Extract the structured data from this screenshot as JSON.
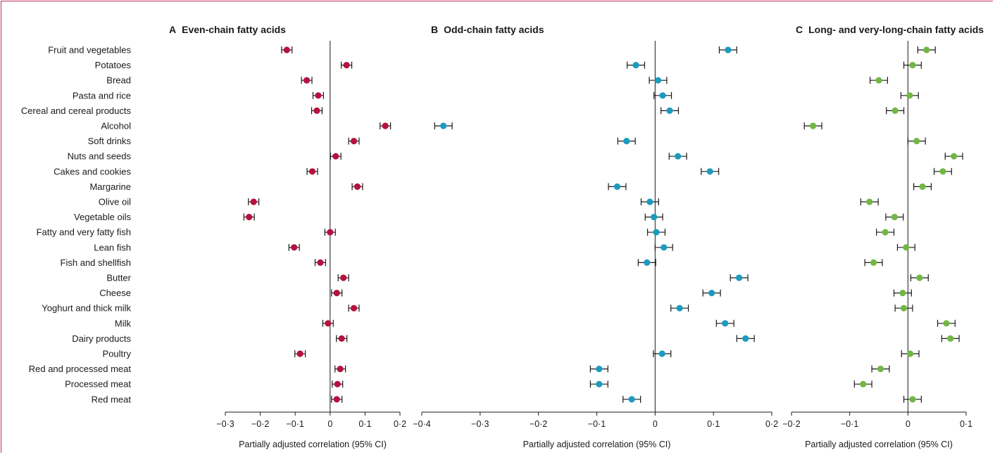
{
  "categories": [
    "Fruit and vegetables",
    "Potatoes",
    "Bread",
    "Pasta and rice",
    "Cereal and cereal products",
    "Alcohol",
    "Soft drinks",
    "Nuts and seeds",
    "Cakes and cookies",
    "Margarine",
    "Olive oil",
    "Vegetable oils",
    "Fatty and very fatty fish",
    "Lean fish",
    "Fish and shellfish",
    "Butter",
    "Cheese",
    "Yoghurt and thick milk",
    "Milk",
    "Dairy products",
    "Poultry",
    "Red and processed meat",
    "Processed meat",
    "Red meat"
  ],
  "chart_data": [
    {
      "type": "scatter",
      "letter": "A",
      "title": "Even-chain fatty acids",
      "xlabel": "Partially adjusted correlation (95% CI)",
      "xlim": [
        -0.3,
        0.2
      ],
      "ticks": [
        -0.3,
        -0.2,
        -0.1,
        0,
        0.1,
        0.2
      ],
      "tick_labels": [
        "−0·3",
        "−0·2",
        "−0·1",
        "0",
        "0·1",
        "0·2"
      ],
      "ci_halfwidth": 0.015,
      "color": "#b5123f",
      "values": [
        -0.124,
        0.047,
        -0.067,
        -0.034,
        -0.038,
        0.158,
        0.068,
        0.016,
        -0.051,
        0.078,
        -0.219,
        -0.232,
        0.0,
        -0.103,
        -0.028,
        0.038,
        0.019,
        0.068,
        -0.006,
        0.033,
        -0.086,
        0.029,
        0.021,
        0.019
      ]
    },
    {
      "type": "scatter",
      "letter": "B",
      "title": "Odd-chain fatty acids",
      "xlabel": "Partially adjusted correlation (95% CI)",
      "xlim": [
        -0.4,
        0.2
      ],
      "ticks": [
        -0.4,
        -0.3,
        -0.2,
        -0.1,
        0,
        0.1,
        0.2
      ],
      "tick_labels": [
        "−0·4",
        "−0·3",
        "−0·2",
        "−0·1",
        "0",
        "0·1",
        "0·2"
      ],
      "ci_halfwidth": 0.015,
      "color": "#1a9bbf",
      "values": [
        0.125,
        -0.033,
        0.005,
        0.013,
        0.025,
        -0.363,
        -0.049,
        0.039,
        0.094,
        -0.065,
        -0.009,
        -0.002,
        0.002,
        0.015,
        -0.014,
        0.144,
        0.097,
        0.042,
        0.12,
        0.155,
        0.012,
        -0.096,
        -0.096,
        -0.04
      ]
    },
    {
      "type": "scatter",
      "letter": "C",
      "title": "Long- and very-long-chain fatty acids",
      "xlabel": "Partially adjusted correlation (95% CI)",
      "xlim": [
        -0.2,
        0.1
      ],
      "ticks": [
        -0.2,
        -0.1,
        0,
        0.1
      ],
      "tick_labels": [
        "−0·2",
        "−0·1",
        "0",
        "0·1"
      ],
      "ci_halfwidth": 0.015,
      "color": "#72b744",
      "values": [
        0.032,
        0.008,
        -0.05,
        0.003,
        -0.022,
        -0.163,
        0.015,
        0.079,
        0.06,
        0.025,
        -0.066,
        -0.023,
        -0.039,
        -0.003,
        -0.059,
        0.02,
        -0.009,
        -0.007,
        0.066,
        0.073,
        0.004,
        -0.047,
        -0.077,
        0.008
      ]
    }
  ]
}
